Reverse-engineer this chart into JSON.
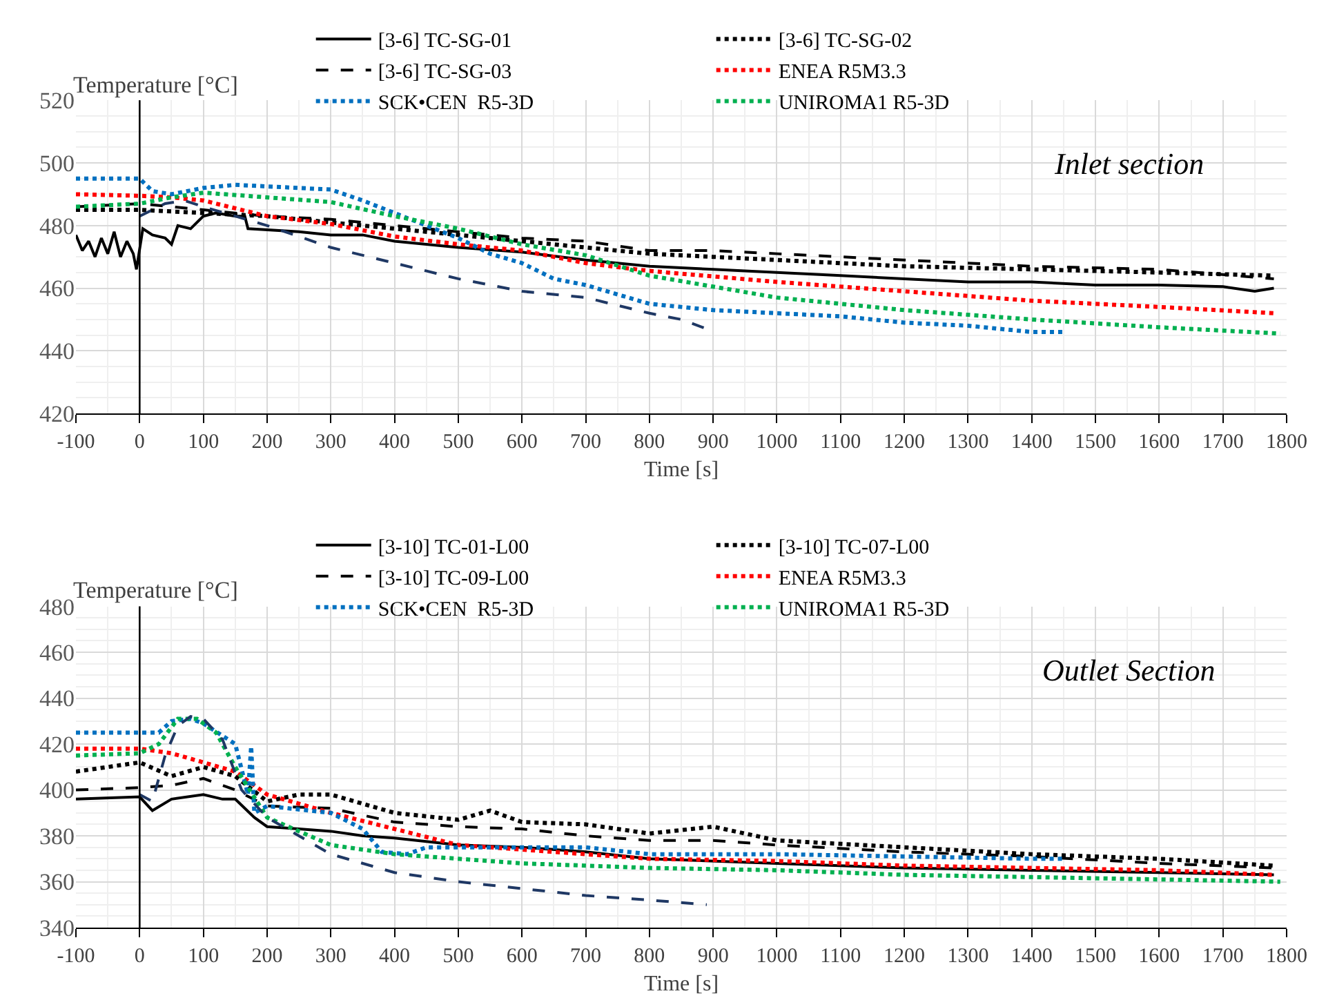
{
  "chart_data": [
    {
      "type": "line",
      "xlabel": "Time [s]",
      "ylabel": "Temperature [°C]",
      "annotations": [
        "Inlet section"
      ],
      "grid": true,
      "legend": "top",
      "xlim": [
        -100,
        1800
      ],
      "xticks": [
        -100,
        0,
        100,
        200,
        300,
        400,
        500,
        600,
        700,
        800,
        900,
        1000,
        1100,
        1200,
        1300,
        1400,
        1500,
        1600,
        1700,
        1800
      ],
      "ylim": [
        420,
        520
      ],
      "yticks": [
        420,
        440,
        460,
        480,
        500,
        520
      ],
      "ref_lines": [
        {
          "axis": "x",
          "value": 0,
          "color": "#000000"
        }
      ],
      "series": [
        {
          "name": "[3-6] TC-SG-01",
          "color": "#000000",
          "line_style": "solid",
          "x": [
            -100,
            -90,
            -80,
            -70,
            -60,
            -50,
            -40,
            -30,
            -20,
            -10,
            -5,
            5,
            20,
            40,
            50,
            60,
            80,
            100,
            120,
            150,
            165,
            170,
            250,
            300,
            350,
            400,
            500,
            600,
            700,
            800,
            900,
            1000,
            1100,
            1200,
            1300,
            1400,
            1500,
            1600,
            1700,
            1750,
            1780
          ],
          "values": [
            477,
            472,
            475,
            470,
            476,
            471,
            478,
            470,
            475,
            471,
            466,
            479,
            477,
            476,
            474,
            480,
            479,
            483,
            484,
            483,
            483,
            479,
            478,
            477,
            477,
            475,
            473,
            471.5,
            469,
            467,
            466,
            465,
            464,
            463,
            462,
            462,
            461,
            461,
            460.5,
            459,
            460
          ]
        },
        {
          "name": "[3-6] TC-SG-02",
          "color": "#000000",
          "line_style": "dotted",
          "x": [
            -100,
            0,
            100,
            200,
            300,
            400,
            500,
            600,
            700,
            800,
            900,
            1000,
            1200,
            1400,
            1600,
            1780
          ],
          "values": [
            485,
            485,
            484,
            483,
            481,
            479,
            477,
            475,
            473,
            471,
            470,
            469,
            467,
            466,
            465,
            464
          ]
        },
        {
          "name": "[3-6] TC-SG-03",
          "color": "#000000",
          "line_style": "dashed",
          "x": [
            -100,
            0,
            100,
            200,
            300,
            400,
            500,
            600,
            700,
            800,
            900,
            1000,
            1200,
            1400,
            1600,
            1780
          ],
          "values": [
            486,
            487,
            485,
            483,
            482,
            480,
            478,
            476,
            475,
            472,
            472,
            471,
            469,
            467,
            466,
            463
          ]
        },
        {
          "name": "ENEA R5M3.3",
          "color": "#ff0000",
          "line_style": "dotted",
          "x": [
            -100,
            0,
            50,
            100,
            200,
            300,
            400,
            500,
            600,
            700,
            800,
            1000,
            1200,
            1400,
            1600,
            1780
          ],
          "values": [
            490,
            489.5,
            489,
            488,
            483,
            480.5,
            476.5,
            474,
            472,
            468,
            465.5,
            462,
            459,
            456,
            454,
            452
          ]
        },
        {
          "name": "SCK•CEN  R5-3D",
          "color": "#0070c0",
          "line_style": "dotted",
          "x": [
            -100,
            0,
            20,
            50,
            100,
            150,
            250,
            300,
            350,
            400,
            450,
            500,
            550,
            600,
            650,
            700,
            750,
            800,
            900,
            1000,
            1100,
            1200,
            1300,
            1400,
            1450
          ],
          "values": [
            495,
            495,
            491,
            490,
            492,
            493,
            492,
            491.5,
            488,
            484,
            480,
            476,
            471,
            468,
            463,
            461,
            458,
            455,
            453,
            452,
            451,
            449,
            448,
            446,
            446
          ]
        },
        {
          "name": "UNIROMA1 R5-3D",
          "color": "#00b050",
          "line_style": "dotted",
          "x": [
            -100,
            0,
            50,
            100,
            200,
            300,
            400,
            500,
            600,
            700,
            800,
            1000,
            1200,
            1400,
            1600,
            1790
          ],
          "values": [
            486,
            487,
            489,
            490.5,
            489,
            487.5,
            483,
            479,
            474,
            470.5,
            464,
            457,
            453,
            450,
            447.5,
            445.5
          ]
        },
        {
          "color": "#1f3864",
          "line_style": "dashed",
          "x": [
            0,
            40,
            70,
            100,
            150,
            200,
            300,
            400,
            500,
            600,
            700,
            800,
            850,
            890
          ],
          "values": [
            483,
            487,
            488,
            486,
            483,
            480,
            473,
            468,
            463,
            459,
            457,
            452,
            450,
            447
          ]
        }
      ]
    },
    {
      "type": "line",
      "xlabel": "Time [s]",
      "ylabel": "Temperature [°C]",
      "annotations": [
        "Outlet Section"
      ],
      "grid": true,
      "legend": "top",
      "xlim": [
        -100,
        1800
      ],
      "xticks": [
        -100,
        0,
        100,
        200,
        300,
        400,
        500,
        600,
        700,
        800,
        900,
        1000,
        1100,
        1200,
        1300,
        1400,
        1500,
        1600,
        1700,
        1800
      ],
      "ylim": [
        340,
        480
      ],
      "yticks": [
        340,
        360,
        380,
        400,
        420,
        440,
        460,
        480
      ],
      "ref_lines": [
        {
          "axis": "x",
          "value": 0,
          "color": "#000000"
        }
      ],
      "series": [
        {
          "name": "[3-10] TC-01-L00",
          "color": "#000000",
          "line_style": "solid",
          "x": [
            -100,
            0,
            20,
            50,
            100,
            130,
            150,
            180,
            200,
            250,
            300,
            350,
            400,
            500,
            600,
            700,
            800,
            1000,
            1200,
            1400,
            1600,
            1780
          ],
          "values": [
            396,
            397,
            391,
            396,
            398,
            396,
            396,
            388,
            384,
            383,
            382,
            380,
            379,
            376,
            375,
            373,
            370,
            368,
            366,
            365,
            364,
            363
          ]
        },
        {
          "name": "[3-10] TC-07-L00",
          "color": "#000000",
          "line_style": "dotted",
          "x": [
            -100,
            0,
            50,
            100,
            150,
            200,
            250,
            300,
            400,
            500,
            550,
            600,
            700,
            800,
            900,
            1000,
            1200,
            1400,
            1600,
            1780
          ],
          "values": [
            408,
            412,
            406,
            410,
            406,
            395,
            398,
            398,
            390,
            387,
            391,
            386,
            385,
            381,
            384,
            378,
            375,
            372,
            370,
            367
          ]
        },
        {
          "name": "[3-10] TC-09-L00",
          "color": "#000000",
          "line_style": "dashed",
          "x": [
            -100,
            0,
            50,
            100,
            150,
            200,
            300,
            400,
            500,
            600,
            700,
            800,
            900,
            1000,
            1200,
            1400,
            1600,
            1780
          ],
          "values": [
            400,
            401,
            402,
            405,
            400,
            393,
            392,
            386,
            384,
            383,
            380,
            378,
            378,
            376,
            373,
            371,
            368,
            366
          ]
        },
        {
          "name": "ENEA R5M3.3",
          "color": "#ff0000",
          "line_style": "dotted",
          "x": [
            -100,
            0,
            50,
            100,
            150,
            200,
            300,
            400,
            500,
            600,
            700,
            800,
            1000,
            1200,
            1400,
            1600,
            1780
          ],
          "values": [
            418,
            418,
            416,
            412,
            408,
            398,
            390,
            383,
            376,
            374,
            372,
            370,
            369,
            367,
            366,
            365,
            363
          ]
        },
        {
          "name": "SCK•CEN  R5-3D",
          "color": "#0070c0",
          "line_style": "dotted",
          "x": [
            -100,
            0,
            30,
            50,
            80,
            100,
            150,
            170,
            175,
            180,
            200,
            300,
            350,
            380,
            420,
            450,
            500,
            700,
            800,
            1000,
            1200,
            1400,
            1450
          ],
          "values": [
            425,
            425,
            425,
            430,
            431,
            429,
            420,
            398,
            419,
            390,
            393,
            390,
            383,
            373,
            372,
            375,
            375,
            375,
            372,
            372,
            371,
            370,
            370
          ]
        },
        {
          "name": "UNIROMA1 R5-3D",
          "color": "#00b050",
          "line_style": "dotted",
          "x": [
            -100,
            0,
            30,
            60,
            90,
            120,
            150,
            200,
            300,
            400,
            500,
            600,
            800,
            1000,
            1200,
            1400,
            1600,
            1790
          ],
          "values": [
            415,
            416,
            420,
            431,
            431,
            425,
            410,
            388,
            376,
            372,
            370,
            368,
            366,
            365,
            363,
            362,
            361,
            360
          ]
        },
        {
          "color": "#1f3864",
          "line_style": "dashed",
          "x": [
            0,
            20,
            40,
            60,
            80,
            100,
            130,
            160,
            200,
            300,
            400,
            500,
            600,
            700,
            800,
            890
          ],
          "values": [
            398,
            395,
            415,
            428,
            432,
            431,
            422,
            400,
            388,
            372,
            364,
            360,
            357,
            354,
            352,
            350
          ]
        }
      ]
    }
  ]
}
